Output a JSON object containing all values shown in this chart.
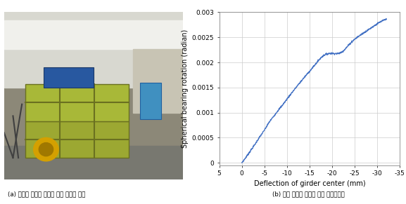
{
  "xlabel": "Deflection of girder center (mm)",
  "ylabel": "Spherical bearing rotation (radian)",
  "xlim": [
    5,
    -35
  ],
  "ylim": [
    -5e-05,
    0.003
  ],
  "xticks": [
    5,
    0,
    -5,
    -10,
    -15,
    -20,
    -25,
    -30,
    -35
  ],
  "yticks": [
    0,
    0.0005,
    0.001,
    0.0015,
    0.002,
    0.0025,
    0.003
  ],
  "ytick_labels": [
    "0",
    "0.0005",
    "0.001",
    "0.0015",
    "0.002",
    "0.0025",
    "0.003"
  ],
  "line_color": "#4472C4",
  "grid_color": "#CCCCCC",
  "caption_a": "(a) 고정단 회전각 측정을 위한 변위계 설치",
  "caption_b": "(b) 거더 중앙부 처짐에 대한 단부회전각",
  "bg_color": "#FFFFFF",
  "photo_bg": "#B8B8A8",
  "photo_wall_top": "#E8E8E8",
  "photo_wall_right": "#D8D4C8",
  "photo_floor": "#A0A098",
  "photo_box_color": "#B8C050",
  "photo_blue_machine": "#2060A0"
}
